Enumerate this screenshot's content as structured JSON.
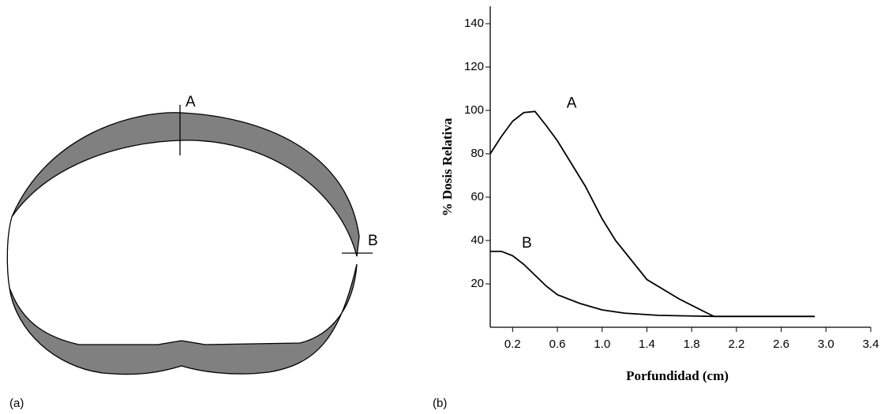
{
  "panels": [
    "(a)",
    "(b)"
  ],
  "diagram": {
    "labels": [
      "A",
      "B"
    ]
  },
  "chart_data": {
    "type": "line",
    "y_label": "% Dosis Relativa",
    "x_label": "Porfundidad (cm)",
    "xlim": [
      0,
      3.4
    ],
    "ylim": [
      0,
      148
    ],
    "xticks": [
      0.2,
      0.6,
      {
        "value": 1,
        "label": "1.0"
      },
      1.4,
      1.8,
      2.2,
      2.6,
      {
        "value": 3,
        "label": "3.0"
      },
      3.4
    ],
    "yticks": [
      20,
      40,
      60,
      80,
      100,
      120,
      140
    ],
    "series": [
      {
        "name": "A",
        "color": "#000000",
        "x": [
          0,
          0.1,
          0.2,
          0.3,
          0.4,
          0.5,
          0.6,
          0.85,
          1.0,
          1.12,
          1.4,
          1.69,
          1.94,
          2.0,
          2.9
        ],
        "values": [
          80,
          88,
          95,
          99,
          99.5,
          93,
          86,
          65,
          50,
          40,
          22,
          13,
          6.5,
          5,
          5
        ]
      },
      {
        "name": "B",
        "color": "#000000",
        "x": [
          0,
          0.1,
          0.2,
          0.3,
          0.4,
          0.5,
          0.6,
          0.8,
          1.0,
          1.2,
          1.5,
          2.0,
          2.9
        ],
        "values": [
          35,
          35,
          33,
          29,
          24,
          19,
          15,
          11,
          8,
          6.5,
          5.5,
          5,
          5
        ]
      }
    ]
  }
}
